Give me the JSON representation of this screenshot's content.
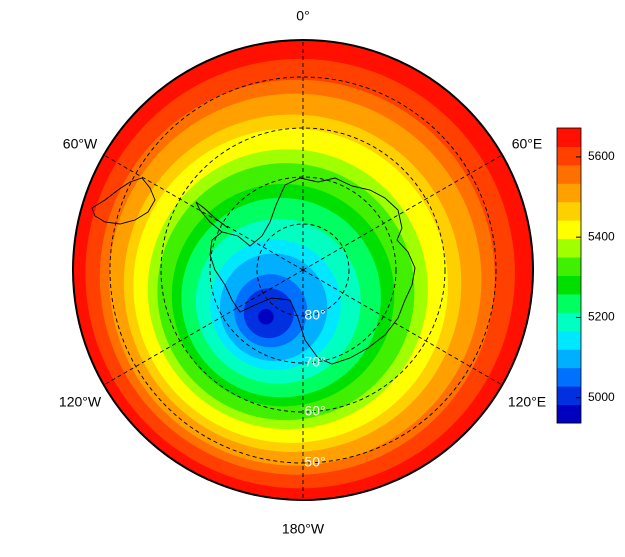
{
  "map": {
    "lon_labels": [
      "0°",
      "60°E",
      "120°E",
      "180°W",
      "120°W",
      "60°W"
    ],
    "lat_labels": [
      "80°",
      "70°",
      "60°",
      "50°"
    ],
    "colorbar": {
      "lim": [
        4937,
        5672
      ],
      "ticks": [
        5000,
        5200,
        5400,
        5600
      ],
      "colors": [
        "#0000c0",
        "#0030e0",
        "#0070ff",
        "#00b0ff",
        "#00e8ff",
        "#00ffc0",
        "#00ff60",
        "#00e000",
        "#40f000",
        "#a0ff00",
        "#ffff00",
        "#ffd000",
        "#ffa000",
        "#ff7000",
        "#ff4000",
        "#ff1000"
      ]
    }
  }
}
